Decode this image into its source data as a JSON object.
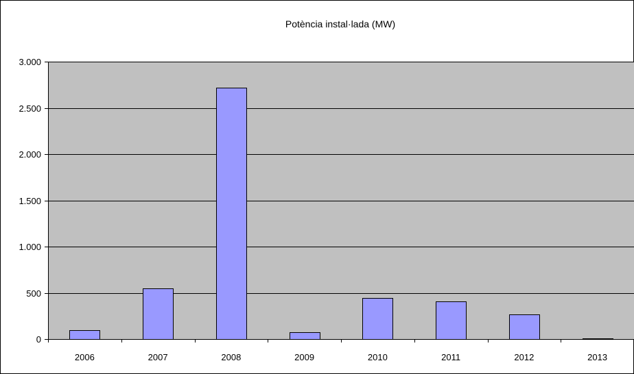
{
  "chart_data": {
    "type": "bar",
    "title": "Potència instal·lada (MW)",
    "categories": [
      "2006",
      "2007",
      "2008",
      "2009",
      "2010",
      "2011",
      "2012",
      "2013"
    ],
    "values": [
      95,
      545,
      2715,
      75,
      445,
      410,
      265,
      10
    ],
    "ylim": [
      0,
      3000
    ],
    "yticks": [
      0,
      500,
      1000,
      1500,
      2000,
      2500,
      3000
    ],
    "ytick_labels": [
      "0",
      "500",
      "1.000",
      "1.500",
      "2.000",
      "2.500",
      "3.000"
    ],
    "grid": true,
    "legend": "none",
    "colors": {
      "plot_background": "#c0c0c0",
      "bar_fill": "#9999ff",
      "bar_stroke": "#000000",
      "gridline": "#000000"
    }
  }
}
